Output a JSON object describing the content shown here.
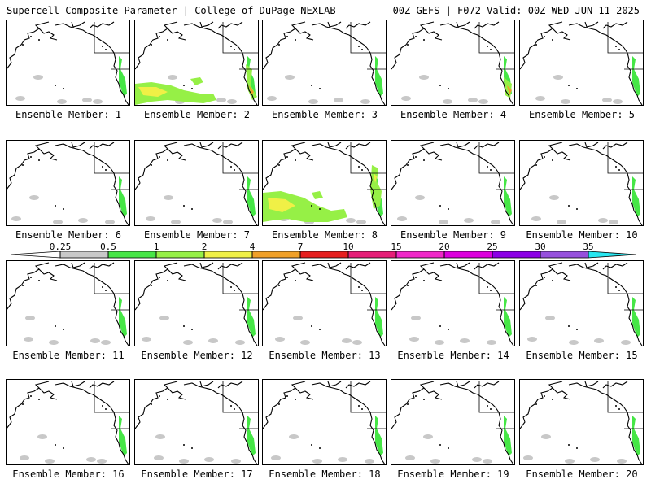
{
  "header": {
    "left_title": "Supercell Composite Parameter | College of DuPage NEXLAB",
    "right_title": "00Z GEFS | F072 Valid: 00Z WED JUN 11 2025"
  },
  "panels": [
    {
      "label": "Ensemble Member: 1",
      "member": 1
    },
    {
      "label": "Ensemble Member: 2",
      "member": 2
    },
    {
      "label": "Ensemble Member: 3",
      "member": 3
    },
    {
      "label": "Ensemble Member: 4",
      "member": 4
    },
    {
      "label": "Ensemble Member: 5",
      "member": 5
    },
    {
      "label": "Ensemble Member: 6",
      "member": 6
    },
    {
      "label": "Ensemble Member: 7",
      "member": 7
    },
    {
      "label": "Ensemble Member: 8",
      "member": 8
    },
    {
      "label": "Ensemble Member: 9",
      "member": 9
    },
    {
      "label": "Ensemble Member: 10",
      "member": 10
    },
    {
      "label": "Ensemble Member: 11",
      "member": 11
    },
    {
      "label": "Ensemble Member: 12",
      "member": 12
    },
    {
      "label": "Ensemble Member: 13",
      "member": 13
    },
    {
      "label": "Ensemble Member: 14",
      "member": 14
    },
    {
      "label": "Ensemble Member: 15",
      "member": 15
    },
    {
      "label": "Ensemble Member: 16",
      "member": 16
    },
    {
      "label": "Ensemble Member: 17",
      "member": 17
    },
    {
      "label": "Ensemble Member: 18",
      "member": 18
    },
    {
      "label": "Ensemble Member: 19",
      "member": 19
    },
    {
      "label": "Ensemble Member: 20",
      "member": 20
    }
  ],
  "colorbar": {
    "ticks": [
      "0.25",
      "0.5",
      "1",
      "2",
      "4",
      "7",
      "10",
      "15",
      "20",
      "25",
      "30",
      "35"
    ],
    "colors": [
      "#c8c8c8",
      "#46e646",
      "#96f046",
      "#f0f046",
      "#f0a028",
      "#e61e1e",
      "#e61e78",
      "#f028c8",
      "#dc00dc",
      "#8c00e6",
      "#9650dc",
      "#28e6f0"
    ]
  }
}
